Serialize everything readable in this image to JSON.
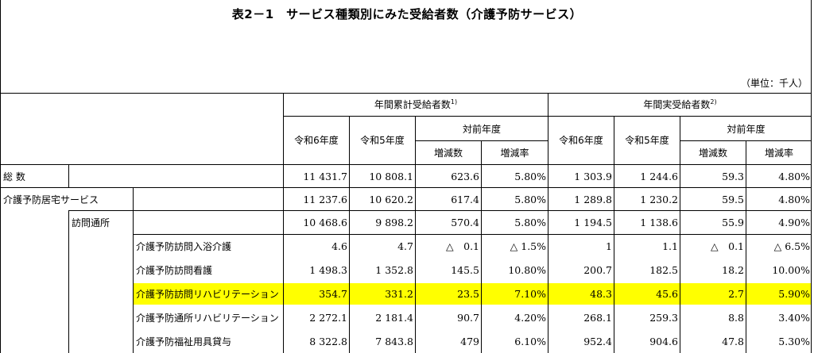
{
  "title": "表2－1　サービス種類別にみた受給者数（介護予防サービス）",
  "unit": "（単位：千人）",
  "header": {
    "group1": "年間累計受給者数",
    "group1_note": "1)",
    "group2": "年間実受給者数",
    "group2_note": "2)",
    "r6": "令和6年度",
    "r5": "令和5年度",
    "prev_year": "対前年度",
    "change_count": "増減数",
    "change_rate": "増減率"
  },
  "rows": [
    {
      "label": "総 数",
      "level": 0,
      "values": [
        "11 431.7",
        "10 808.1",
        "623.6",
        "5.80%",
        "1 303.9",
        "1 244.6",
        "59.3",
        "4.80%"
      ]
    },
    {
      "label": "介護予防居宅サービス",
      "level": 1,
      "values": [
        "11 237.6",
        "10 620.2",
        "617.4",
        "5.80%",
        "1 289.8",
        "1 230.2",
        "59.5",
        "4.80%"
      ]
    },
    {
      "label": "訪問通所",
      "level": 2,
      "values": [
        "10 468.6",
        "9 898.2",
        "570.4",
        "5.80%",
        "1 194.5",
        "1 138.6",
        "55.9",
        "4.90%"
      ]
    },
    {
      "label": "介護予防訪問入浴介護",
      "level": 3,
      "values": [
        "4.6",
        "4.7",
        "△　0.1",
        "△ 1.5%",
        "1",
        "1.1",
        "△　0.1",
        "△ 6.5%"
      ]
    },
    {
      "label": "介護予防訪問看護",
      "level": 3,
      "values": [
        "1 498.3",
        "1 352.8",
        "145.5",
        "10.80%",
        "200.7",
        "182.5",
        "18.2",
        "10.00%"
      ]
    },
    {
      "label": "介護予防訪問リハビリテーション",
      "level": 3,
      "highlight": true,
      "values": [
        "354.7",
        "331.2",
        "23.5",
        "7.10%",
        "48.3",
        "45.6",
        "2.7",
        "5.90%"
      ]
    },
    {
      "label": "介護予防通所リハビリテーション",
      "level": 3,
      "values": [
        "2 272.1",
        "2 181.4",
        "90.7",
        "4.20%",
        "268.1",
        "259.3",
        "8.8",
        "3.40%"
      ]
    },
    {
      "label": "介護予防福祉用具貸与",
      "level": 3,
      "values": [
        "8 322.8",
        "7 843.8",
        "479",
        "6.10%",
        "952.4",
        "904.6",
        "47.8",
        "5.30%"
      ]
    }
  ],
  "colors": {
    "highlight": "#ffff00",
    "grid": "#000000"
  }
}
